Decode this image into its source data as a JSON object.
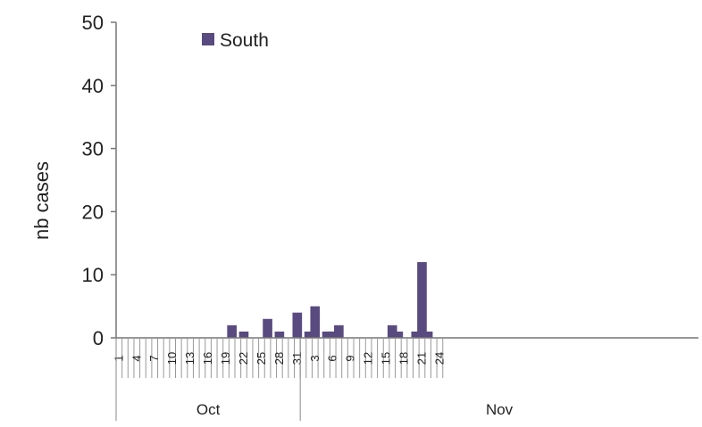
{
  "chart_data": {
    "type": "bar",
    "title": "",
    "xlabel": "",
    "ylabel": "nb cases",
    "ylim": [
      0,
      50
    ],
    "yticks": [
      0,
      10,
      20,
      30,
      40,
      50
    ],
    "grid": false,
    "legend_position": "top-left",
    "months": [
      {
        "label": "Oct",
        "days": 31
      },
      {
        "label": "Nov",
        "days": 24
      }
    ],
    "x_tick_labels": [
      {
        "month": "Oct",
        "day": 1
      },
      {
        "month": "Oct",
        "day": 4
      },
      {
        "month": "Oct",
        "day": 7
      },
      {
        "month": "Oct",
        "day": 10
      },
      {
        "month": "Oct",
        "day": 13
      },
      {
        "month": "Oct",
        "day": 16
      },
      {
        "month": "Oct",
        "day": 19
      },
      {
        "month": "Oct",
        "day": 22
      },
      {
        "month": "Oct",
        "day": 25
      },
      {
        "month": "Oct",
        "day": 28
      },
      {
        "month": "Oct",
        "day": 31
      },
      {
        "month": "Nov",
        "day": 3
      },
      {
        "month": "Nov",
        "day": 6
      },
      {
        "month": "Nov",
        "day": 9
      },
      {
        "month": "Nov",
        "day": 12
      },
      {
        "month": "Nov",
        "day": 15
      },
      {
        "month": "Nov",
        "day": 18
      },
      {
        "month": "Nov",
        "day": 21
      },
      {
        "month": "Nov",
        "day": 24
      }
    ],
    "series": [
      {
        "name": "South",
        "color": "#594a7f",
        "points": [
          {
            "month": "Oct",
            "day": 20,
            "value": 2
          },
          {
            "month": "Oct",
            "day": 22,
            "value": 1
          },
          {
            "month": "Oct",
            "day": 26,
            "value": 3
          },
          {
            "month": "Oct",
            "day": 28,
            "value": 1
          },
          {
            "month": "Oct",
            "day": 31,
            "value": 4
          },
          {
            "month": "Nov",
            "day": 2,
            "value": 1
          },
          {
            "month": "Nov",
            "day": 3,
            "value": 5
          },
          {
            "month": "Nov",
            "day": 5,
            "value": 1
          },
          {
            "month": "Nov",
            "day": 6,
            "value": 1
          },
          {
            "month": "Nov",
            "day": 7,
            "value": 2
          },
          {
            "month": "Nov",
            "day": 16,
            "value": 2
          },
          {
            "month": "Nov",
            "day": 17,
            "value": 1
          },
          {
            "month": "Nov",
            "day": 20,
            "value": 1
          },
          {
            "month": "Nov",
            "day": 21,
            "value": 12
          },
          {
            "month": "Nov",
            "day": 22,
            "value": 1
          }
        ]
      }
    ]
  }
}
